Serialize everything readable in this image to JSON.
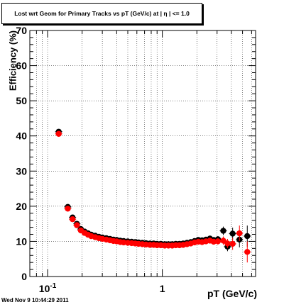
{
  "timestamp": "Wed Nov  9 10:44:29 2011",
  "colors": {
    "series_black": "#000000",
    "series_red": "#ff0000",
    "frame": "#000000",
    "grid": "#000000",
    "background": "#ffffff"
  },
  "chart_data": {
    "type": "scatter",
    "title": "Lost wrt Geom for Primary Tracks vs pT (GeV/c) at |  η | <= 1.0",
    "xlabel": "pT (GeV/c)",
    "ylabel": "Efficiency (%)",
    "x_scale": "log",
    "xlim": [
      0.07,
      6.5
    ],
    "ylim": [
      0,
      70
    ],
    "y_ticks": [
      0,
      10,
      20,
      30,
      40,
      50,
      60,
      70
    ],
    "x_tick_labels": [
      {
        "value": 0.1,
        "base": "10",
        "exp": "-1"
      },
      {
        "value": 1,
        "base": "1",
        "exp": ""
      }
    ],
    "grid": true,
    "series": [
      {
        "color": "#000000",
        "points": [
          {
            "x": 0.125,
            "y": 41.2
          },
          {
            "x": 0.15,
            "y": 19.8
          },
          {
            "x": 0.165,
            "y": 16.8
          },
          {
            "x": 0.18,
            "y": 15.0
          },
          {
            "x": 0.195,
            "y": 13.5
          },
          {
            "x": 0.21,
            "y": 12.8
          },
          {
            "x": 0.225,
            "y": 12.3
          },
          {
            "x": 0.24,
            "y": 11.9
          },
          {
            "x": 0.26,
            "y": 11.6
          },
          {
            "x": 0.28,
            "y": 11.3
          },
          {
            "x": 0.3,
            "y": 11.1
          },
          {
            "x": 0.325,
            "y": 10.9
          },
          {
            "x": 0.35,
            "y": 10.7
          },
          {
            "x": 0.375,
            "y": 10.5
          },
          {
            "x": 0.4,
            "y": 10.4
          },
          {
            "x": 0.43,
            "y": 10.2
          },
          {
            "x": 0.46,
            "y": 10.1
          },
          {
            "x": 0.5,
            "y": 10.0
          },
          {
            "x": 0.54,
            "y": 9.9
          },
          {
            "x": 0.58,
            "y": 9.8
          },
          {
            "x": 0.62,
            "y": 9.7
          },
          {
            "x": 0.67,
            "y": 9.6
          },
          {
            "x": 0.72,
            "y": 9.5
          },
          {
            "x": 0.78,
            "y": 9.4
          },
          {
            "x": 0.84,
            "y": 9.4
          },
          {
            "x": 0.9,
            "y": 9.3
          },
          {
            "x": 0.97,
            "y": 9.3
          },
          {
            "x": 1.05,
            "y": 9.2
          },
          {
            "x": 1.13,
            "y": 9.2
          },
          {
            "x": 1.22,
            "y": 9.2
          },
          {
            "x": 1.31,
            "y": 9.3
          },
          {
            "x": 1.41,
            "y": 9.3
          },
          {
            "x": 1.52,
            "y": 9.4
          },
          {
            "x": 1.64,
            "y": 9.6
          },
          {
            "x": 1.77,
            "y": 9.8
          },
          {
            "x": 1.91,
            "y": 10.1
          },
          {
            "x": 2.06,
            "y": 10.4
          },
          {
            "x": 2.22,
            "y": 10.3
          },
          {
            "x": 2.4,
            "y": 10.5
          },
          {
            "x": 2.6,
            "y": 10.8
          },
          {
            "x": 2.8,
            "y": 10.4
          },
          {
            "x": 3.05,
            "y": 10.6
          },
          {
            "x": 3.4,
            "y": 13.0
          },
          {
            "x": 3.7,
            "y": 8.5
          },
          {
            "x": 4.1,
            "y": 12.2
          },
          {
            "x": 4.7,
            "y": 10.5
          },
          {
            "x": 5.5,
            "y": 11.5
          }
        ],
        "yerr": [
          0.5,
          0.4,
          0.4,
          0.4,
          0.3,
          0.3,
          0.3,
          0.3,
          0.3,
          0.3,
          0.3,
          0.3,
          0.3,
          0.3,
          0.3,
          0.3,
          0.3,
          0.3,
          0.3,
          0.3,
          0.3,
          0.3,
          0.3,
          0.3,
          0.3,
          0.3,
          0.3,
          0.3,
          0.3,
          0.3,
          0.3,
          0.3,
          0.4,
          0.4,
          0.4,
          0.4,
          0.5,
          0.5,
          0.6,
          0.7,
          0.8,
          0.9,
          1.2,
          1.3,
          1.7,
          2.2,
          3.0
        ]
      },
      {
        "color": "#ff0000",
        "points": [
          {
            "x": 0.125,
            "y": 40.6
          },
          {
            "x": 0.15,
            "y": 19.3
          },
          {
            "x": 0.165,
            "y": 16.3
          },
          {
            "x": 0.18,
            "y": 14.6
          },
          {
            "x": 0.195,
            "y": 13.1
          },
          {
            "x": 0.21,
            "y": 12.4
          },
          {
            "x": 0.225,
            "y": 11.9
          },
          {
            "x": 0.24,
            "y": 11.5
          },
          {
            "x": 0.26,
            "y": 11.2
          },
          {
            "x": 0.28,
            "y": 10.9
          },
          {
            "x": 0.3,
            "y": 10.7
          },
          {
            "x": 0.325,
            "y": 10.5
          },
          {
            "x": 0.35,
            "y": 10.3
          },
          {
            "x": 0.375,
            "y": 10.1
          },
          {
            "x": 0.4,
            "y": 10.0
          },
          {
            "x": 0.43,
            "y": 9.8
          },
          {
            "x": 0.46,
            "y": 9.7
          },
          {
            "x": 0.5,
            "y": 9.6
          },
          {
            "x": 0.54,
            "y": 9.5
          },
          {
            "x": 0.58,
            "y": 9.4
          },
          {
            "x": 0.62,
            "y": 9.3
          },
          {
            "x": 0.67,
            "y": 9.2
          },
          {
            "x": 0.72,
            "y": 9.1
          },
          {
            "x": 0.78,
            "y": 9.0
          },
          {
            "x": 0.84,
            "y": 9.0
          },
          {
            "x": 0.9,
            "y": 8.9
          },
          {
            "x": 0.97,
            "y": 8.9
          },
          {
            "x": 1.05,
            "y": 8.8
          },
          {
            "x": 1.13,
            "y": 8.8
          },
          {
            "x": 1.22,
            "y": 8.8
          },
          {
            "x": 1.31,
            "y": 8.9
          },
          {
            "x": 1.41,
            "y": 8.9
          },
          {
            "x": 1.52,
            "y": 9.0
          },
          {
            "x": 1.64,
            "y": 9.2
          },
          {
            "x": 1.77,
            "y": 9.4
          },
          {
            "x": 1.91,
            "y": 9.7
          },
          {
            "x": 2.06,
            "y": 9.9
          },
          {
            "x": 2.22,
            "y": 9.8
          },
          {
            "x": 2.4,
            "y": 10.0
          },
          {
            "x": 2.6,
            "y": 10.2
          },
          {
            "x": 2.8,
            "y": 9.9
          },
          {
            "x": 3.05,
            "y": 10.0
          },
          {
            "x": 3.4,
            "y": 10.2
          },
          {
            "x": 3.7,
            "y": 9.4
          },
          {
            "x": 4.1,
            "y": 9.3
          },
          {
            "x": 4.7,
            "y": 12.3
          },
          {
            "x": 5.5,
            "y": 7.0
          }
        ],
        "yerr": [
          0.5,
          0.4,
          0.4,
          0.4,
          0.3,
          0.3,
          0.3,
          0.3,
          0.3,
          0.3,
          0.3,
          0.3,
          0.3,
          0.3,
          0.3,
          0.3,
          0.3,
          0.3,
          0.3,
          0.3,
          0.3,
          0.3,
          0.3,
          0.3,
          0.3,
          0.3,
          0.3,
          0.3,
          0.3,
          0.3,
          0.3,
          0.3,
          0.4,
          0.4,
          0.4,
          0.4,
          0.5,
          0.5,
          0.6,
          0.7,
          0.8,
          0.9,
          1.2,
          1.3,
          1.7,
          2.2,
          3.0
        ]
      }
    ]
  }
}
